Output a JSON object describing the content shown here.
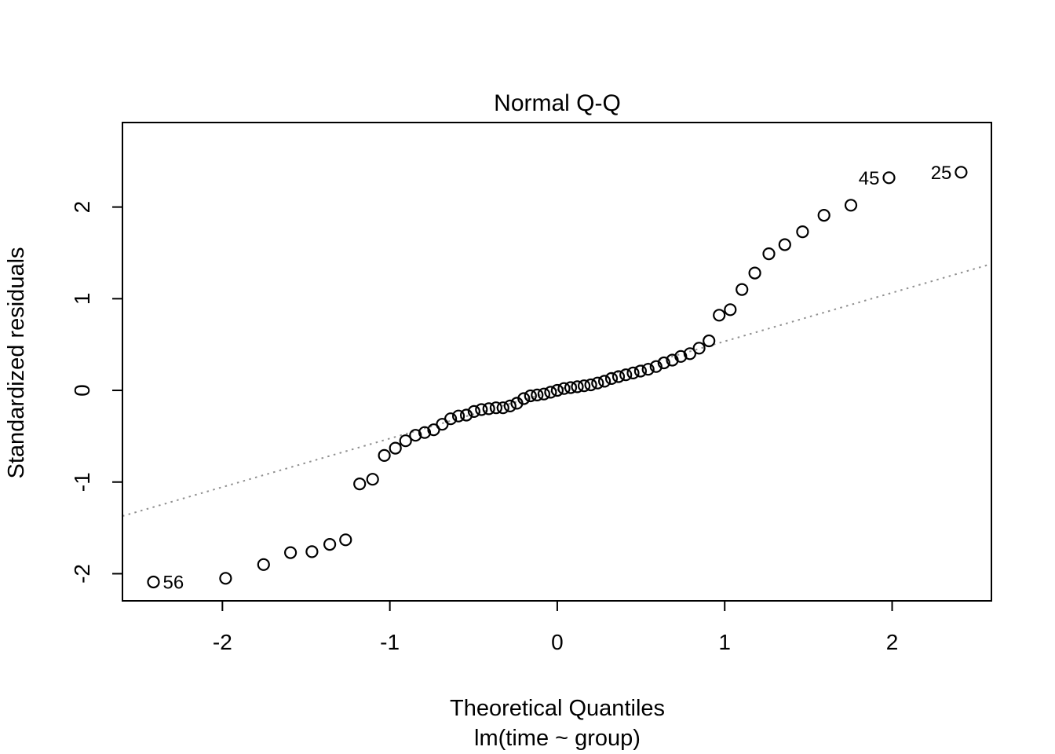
{
  "page": {
    "background": "#ffffff"
  },
  "chart_data": {
    "type": "scatter",
    "title": "Normal Q-Q",
    "xlabel": "Theoretical Quantiles",
    "xlabel_line2": "lm(time ~ group)",
    "ylabel": "Standardized residuals",
    "xlim": [
      -2.597,
      2.593
    ],
    "ylim": [
      -2.296,
      2.922
    ],
    "xticks": [
      -2,
      -1,
      0,
      1,
      2
    ],
    "yticks": [
      -2,
      -1,
      0,
      1,
      2
    ],
    "grid": false,
    "legend_position": "none",
    "n_points": 63,
    "point_style": {
      "shape": "open-circle",
      "stroke": "#000000",
      "fill": "none",
      "radius_px": 7,
      "stroke_width_px": 2.2
    },
    "reference_line": {
      "type": "qqline",
      "slope": 0.53,
      "intercept": 0.005,
      "line_style": "dotted",
      "color": "#909090",
      "stroke_width_px": 2
    },
    "series": [
      {
        "name": "standardized-residuals",
        "x": [
          -2.412,
          -1.981,
          -1.754,
          -1.593,
          -1.465,
          -1.359,
          -1.264,
          -1.18,
          -1.103,
          -1.033,
          -0.967,
          -0.906,
          -0.847,
          -0.792,
          -0.738,
          -0.687,
          -0.637,
          -0.59,
          -0.543,
          -0.497,
          -0.453,
          -0.409,
          -0.366,
          -0.324,
          -0.282,
          -0.241,
          -0.2,
          -0.16,
          -0.12,
          -0.08,
          -0.04,
          0.0,
          0.04,
          0.08,
          0.12,
          0.16,
          0.2,
          0.241,
          0.282,
          0.324,
          0.366,
          0.409,
          0.453,
          0.497,
          0.543,
          0.59,
          0.637,
          0.687,
          0.738,
          0.792,
          0.847,
          0.906,
          0.967,
          1.033,
          1.103,
          1.18,
          1.264,
          1.359,
          1.465,
          1.593,
          1.754,
          1.981,
          2.412
        ],
        "y": [
          -2.09,
          -2.05,
          -1.9,
          -1.77,
          -1.76,
          -1.68,
          -1.63,
          -1.02,
          -0.97,
          -0.71,
          -0.63,
          -0.55,
          -0.49,
          -0.46,
          -0.43,
          -0.37,
          -0.31,
          -0.28,
          -0.27,
          -0.23,
          -0.21,
          -0.2,
          -0.19,
          -0.19,
          -0.17,
          -0.14,
          -0.09,
          -0.06,
          -0.05,
          -0.04,
          -0.02,
          0.0,
          0.02,
          0.03,
          0.04,
          0.05,
          0.06,
          0.08,
          0.1,
          0.13,
          0.15,
          0.17,
          0.19,
          0.21,
          0.23,
          0.26,
          0.3,
          0.33,
          0.37,
          0.4,
          0.46,
          0.54,
          0.82,
          0.88,
          1.1,
          1.28,
          1.49,
          1.59,
          1.73,
          1.91,
          2.02,
          2.32,
          2.38
        ]
      }
    ],
    "point_labels": [
      {
        "text": "25",
        "x": 2.412,
        "y": 2.38,
        "side": "left"
      },
      {
        "text": "45",
        "x": 1.981,
        "y": 2.32,
        "side": "left"
      },
      {
        "text": "56",
        "x": -2.412,
        "y": -2.09,
        "side": "right"
      }
    ]
  }
}
